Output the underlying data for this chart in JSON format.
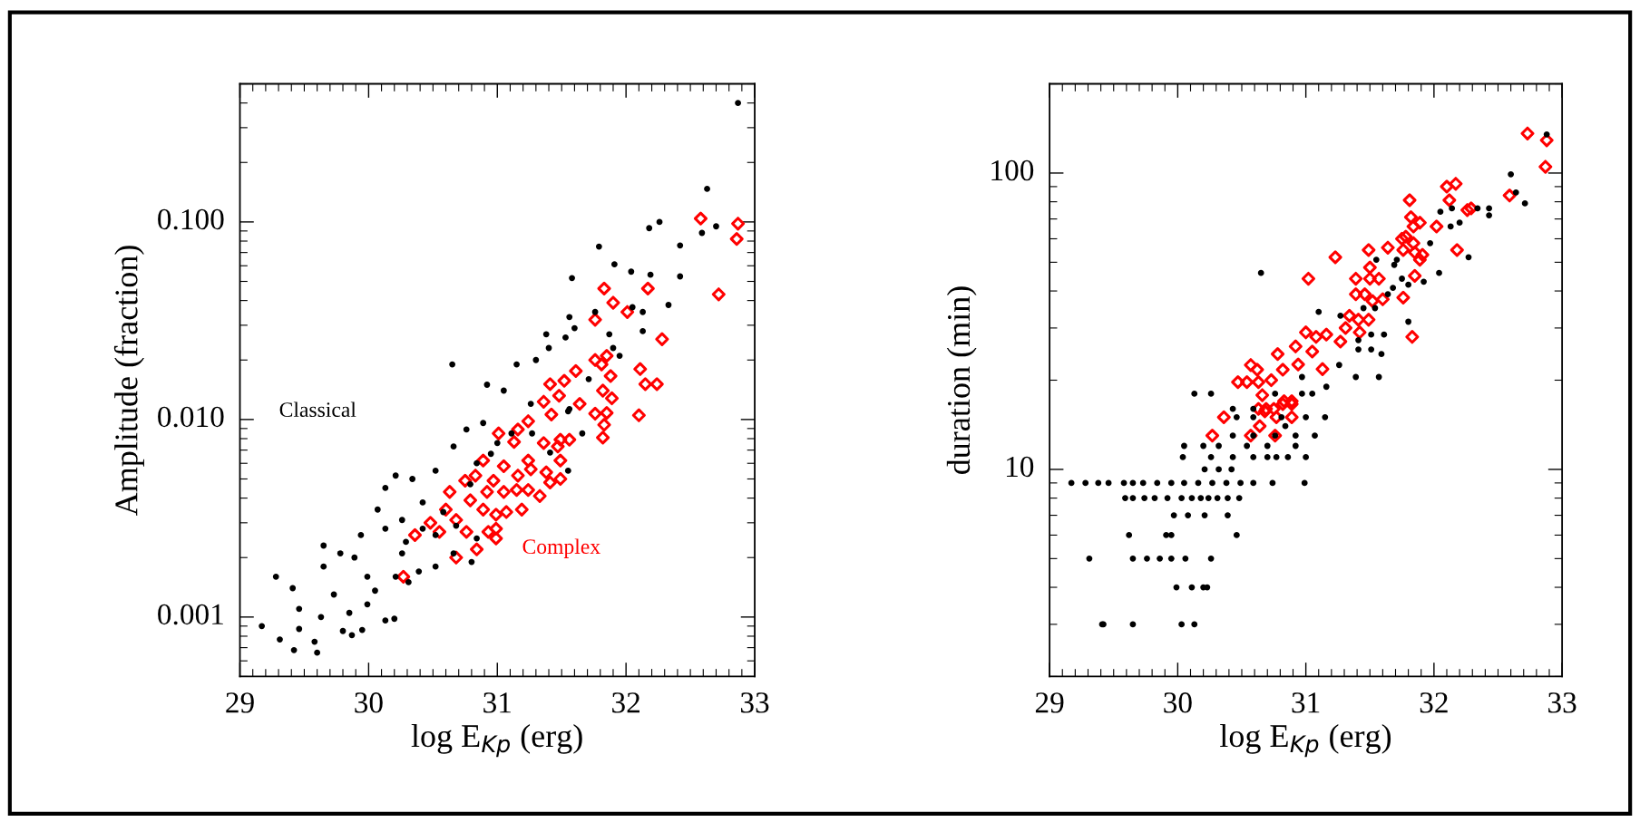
{
  "chart_data": [
    {
      "type": "scatter",
      "annotations": [
        "Classical",
        "Complex"
      ],
      "xlabel": "log E$_{Kp}$ (erg)",
      "ylabel": "Amplitude (fraction)",
      "log": "y",
      "xlim": [
        29,
        33
      ],
      "xticks": [
        29,
        30,
        31,
        32,
        33
      ],
      "ylim": [
        0.0005,
        0.5
      ],
      "yticks": [
        {
          "value": 0.001,
          "label": "0.001"
        },
        {
          "value": 0.01,
          "label": "0.010"
        },
        {
          "value": 0.1,
          "label": "0.100"
        }
      ],
      "series": [
        {
          "color": "#000000",
          "marker": "circle",
          "x": [
            32.87,
            32.63,
            32.26,
            32.18,
            32.59,
            32.7,
            32.42,
            31.79,
            32.42,
            31.91,
            32.04,
            32.19,
            31.58,
            32.33,
            32.13,
            32.05,
            31.76,
            31.56,
            31.6,
            32.13,
            31.87,
            31.38,
            31.53,
            31.9,
            31.95,
            30.65,
            31.4,
            31.3,
            31.15,
            31.71,
            30.92,
            31.55,
            31.26,
            31.05,
            29.17,
            29.28,
            29.31,
            29.42,
            29.6,
            29.58,
            29.41,
            29.46,
            29.46,
            29.65,
            29.65,
            29.63,
            29.8,
            29.87,
            29.95,
            30.13,
            30.2,
            29.73,
            29.78,
            29.85,
            29.99,
            29.94,
            30.07,
            30.13,
            30.21,
            30.34,
            30.26,
            30.21,
            30.05,
            30.39,
            30.31,
            30.52,
            30.66,
            30.52,
            30.66,
            30.76,
            30.89,
            30.8,
            30.42,
            30.29,
            30.13,
            30.58,
            30.79,
            30.95,
            31.11,
            31.27,
            31.41,
            31.55,
            31.66,
            31.56,
            30.84,
            30.42,
            30.26,
            29.99,
            29.89,
            30.68,
            30.52,
            30.84,
            31.0
          ],
          "values": [
            0.4,
            0.147,
            0.1,
            0.093,
            0.088,
            0.095,
            0.076,
            0.075,
            0.053,
            0.061,
            0.056,
            0.054,
            0.052,
            0.038,
            0.035,
            0.037,
            0.035,
            0.033,
            0.029,
            0.028,
            0.027,
            0.027,
            0.026,
            0.023,
            0.021,
            0.019,
            0.023,
            0.02,
            0.019,
            0.016,
            0.015,
            0.011,
            0.012,
            0.014,
            0.0009,
            0.0016,
            0.00077,
            0.00068,
            0.00066,
            0.00075,
            0.0014,
            0.00087,
            0.0011,
            0.0023,
            0.0018,
            0.001,
            0.00085,
            0.00081,
            0.00086,
            0.00096,
            0.00098,
            0.0013,
            0.0021,
            0.00105,
            0.00116,
            0.0026,
            0.0035,
            0.0045,
            0.0052,
            0.005,
            0.0021,
            0.0016,
            0.00136,
            0.0017,
            0.0015,
            0.0018,
            0.0021,
            0.0055,
            0.0073,
            0.0089,
            0.0096,
            0.0019,
            0.0028,
            0.0024,
            0.0028,
            0.0034,
            0.0047,
            0.0067,
            0.0085,
            0.0085,
            0.0068,
            0.0055,
            0.0085,
            0.0113,
            0.0025,
            0.0038,
            0.0031,
            0.0016,
            0.002,
            0.0029,
            0.0026,
            0.006,
            0.0076
          ]
        },
        {
          "color": "#ff0000",
          "marker": "diamond",
          "x": [
            32.58,
            32.87,
            32.86,
            32.72,
            31.83,
            32.17,
            31.9,
            32.01,
            31.76,
            32.28,
            31.85,
            31.76,
            31.81,
            31.61,
            32.11,
            31.52,
            31.88,
            32.15,
            32.24,
            31.41,
            31.48,
            31.36,
            31.64,
            31.82,
            31.89,
            31.76,
            31.85,
            32.1,
            31.42,
            31.24,
            31.83,
            31.82,
            31.49,
            31.56,
            31.36,
            31.47,
            31.16,
            31.01,
            31.13,
            30.89,
            31.05,
            31.49,
            31.24,
            30.83,
            30.75,
            30.97,
            31.16,
            31.26,
            31.38,
            31.41,
            31.49,
            30.63,
            30.79,
            30.92,
            31.05,
            31.15,
            31.24,
            31.33,
            30.6,
            30.68,
            30.89,
            30.99,
            31.07,
            31.19,
            30.48,
            30.36,
            30.55,
            30.76,
            30.93,
            30.99,
            30.99,
            30.84,
            30.68,
            30.27
          ],
          "values": [
            0.104,
            0.098,
            0.082,
            0.043,
            0.046,
            0.046,
            0.039,
            0.035,
            0.032,
            0.0255,
            0.021,
            0.02,
            0.019,
            0.0176,
            0.018,
            0.0157,
            0.0166,
            0.0151,
            0.0151,
            0.0151,
            0.0132,
            0.0123,
            0.012,
            0.014,
            0.0128,
            0.0107,
            0.0108,
            0.0105,
            0.0106,
            0.0098,
            0.0094,
            0.0081,
            0.0079,
            0.0079,
            0.0076,
            0.0073,
            0.0089,
            0.0085,
            0.0077,
            0.0062,
            0.0058,
            0.0062,
            0.0062,
            0.0052,
            0.0049,
            0.0049,
            0.0052,
            0.0056,
            0.0054,
            0.0048,
            0.005,
            0.0043,
            0.0039,
            0.0043,
            0.0043,
            0.0044,
            0.0044,
            0.0041,
            0.0035,
            0.0031,
            0.0035,
            0.0033,
            0.0034,
            0.0035,
            0.003,
            0.0026,
            0.0027,
            0.0027,
            0.0027,
            0.0028,
            0.0025,
            0.0022,
            0.002,
            0.0016
          ]
        }
      ]
    },
    {
      "type": "scatter",
      "xlabel": "log E$_{Kp}$ (erg)",
      "ylabel": "duration (min)",
      "log": "y",
      "xlim": [
        29,
        33
      ],
      "xticks": [
        29,
        30,
        31,
        32,
        33
      ],
      "ylim": [
        2,
        200
      ],
      "yticks": [
        10,
        100
      ],
      "series": [
        {
          "color": "#000000",
          "marker": "circle",
          "x": [
            29.41,
            29.42,
            29.65,
            30.03,
            30.13,
            29.99,
            30.11,
            30.2,
            30.23,
            29.31,
            29.65,
            29.76,
            29.86,
            29.95,
            30.06,
            30.26,
            29.62,
            29.91,
            29.95,
            30.46,
            29.97,
            30.08,
            30.21,
            30.39,
            29.59,
            29.65,
            29.74,
            29.82,
            29.92,
            30.03,
            30.11,
            30.18,
            30.24,
            30.31,
            30.39,
            30.48,
            29.17,
            29.28,
            29.38,
            29.46,
            29.58,
            29.65,
            29.73,
            29.84,
            29.95,
            30.05,
            30.16,
            30.27,
            30.38,
            30.49,
            30.59,
            30.74,
            30.99,
            30.21,
            30.32,
            30.42,
            30.04,
            30.26,
            30.43,
            30.59,
            30.7,
            30.77,
            30.86,
            31.0,
            30.05,
            30.2,
            30.32,
            30.54,
            30.7,
            30.92,
            30.43,
            30.59,
            30.76,
            30.92,
            31.07,
            30.46,
            30.59,
            30.81,
            31.0,
            31.15,
            30.13,
            30.26,
            30.43,
            30.59,
            30.76,
            30.97,
            31.05,
            31.16,
            31.26,
            31.39,
            31.57,
            31.59,
            31.51,
            31.41,
            31.61,
            31.51,
            31.41,
            30.65,
            31.1,
            31.27,
            31.45,
            31.54,
            31.64,
            31.68,
            31.8,
            31.92,
            32.04,
            31.75,
            31.8,
            31.69,
            31.71,
            31.55,
            32.27,
            31.97,
            32.2,
            32.13,
            32.05,
            32.14,
            32.34,
            32.43,
            32.43,
            32.6,
            32.64,
            32.71,
            32.88,
            30.97,
            30.84
          ],
          "values": [
            3,
            3,
            3,
            3,
            3,
            4,
            4,
            4,
            4,
            5,
            5,
            5,
            5,
            5,
            5,
            5,
            6,
            6,
            6,
            6,
            7,
            7,
            7,
            7,
            8,
            8,
            8,
            8,
            8,
            8,
            8,
            8,
            8,
            8,
            8,
            8,
            9,
            9,
            9,
            9,
            9,
            9,
            9,
            9,
            9,
            9,
            9,
            9,
            9,
            9,
            9,
            9,
            9,
            10,
            10,
            10,
            11,
            11,
            11,
            11,
            11,
            11,
            11,
            11,
            12,
            12,
            12,
            12,
            12,
            12,
            13,
            13,
            13,
            13,
            13,
            15,
            15,
            15,
            15,
            15,
            18,
            18,
            16,
            16,
            18,
            18,
            18,
            19,
            22.5,
            20.5,
            20.5,
            24.5,
            25.4,
            25.4,
            28.5,
            28.5,
            27.3,
            46,
            34,
            33,
            35,
            35,
            39,
            41,
            42,
            43,
            46,
            44,
            31.5,
            49,
            51,
            51,
            52,
            58,
            68,
            66,
            74,
            76,
            76,
            76,
            72,
            99,
            86,
            79,
            135,
            20.5,
            14
          ]
        },
        {
          "color": "#ff0000",
          "marker": "diamond",
          "x": [
            32.73,
            32.88,
            32.87,
            32.59,
            32.1,
            32.17,
            32.12,
            31.81,
            31.82,
            31.89,
            31.84,
            32.02,
            32.26,
            32.29,
            31.75,
            31.78,
            31.84,
            31.76,
            31.85,
            31.91,
            31.89,
            32.18,
            31.64,
            31.49,
            31.85,
            31.76,
            31.83,
            31.23,
            31.02,
            31.5,
            31.39,
            31.5,
            31.57,
            31.39,
            31.46,
            31.52,
            31.6,
            31.34,
            31.41,
            31.49,
            31.31,
            31.42,
            31.0,
            31.08,
            31.16,
            31.27,
            30.92,
            31.05,
            30.78,
            30.94,
            31.13,
            30.82,
            30.57,
            30.62,
            30.47,
            30.54,
            30.63,
            30.73,
            30.66,
            30.82,
            30.89,
            30.68,
            30.27,
            30.57,
            30.76,
            30.64,
            30.36,
            30.77,
            30.89,
            30.63,
            30.69,
            30.75,
            30.83,
            30.89
          ],
          "values": [
            136,
            129,
            105,
            84,
            90,
            92,
            81,
            81,
            71,
            68,
            66,
            66,
            75,
            76,
            60,
            61,
            58,
            55,
            54,
            53,
            51,
            55,
            56,
            55,
            45,
            38,
            28,
            52,
            44,
            48,
            44,
            44,
            44,
            39,
            39,
            37,
            37.5,
            33,
            32,
            32,
            30,
            29,
            29,
            28,
            28.5,
            27,
            26,
            25,
            24.5,
            22.6,
            21.8,
            21.7,
            22.5,
            21.7,
            19.7,
            19.7,
            19.7,
            20,
            17.8,
            16.6,
            16.6,
            15.7,
            13,
            13,
            13,
            14,
            15,
            15,
            15,
            16,
            16,
            16,
            17,
            17
          ]
        }
      ]
    }
  ]
}
